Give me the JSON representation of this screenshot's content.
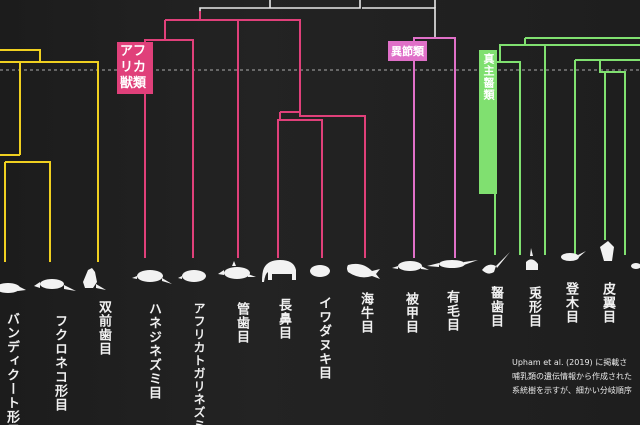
{
  "groups": [
    {
      "key": "afrotheria",
      "label": "アフリカ獣類",
      "color": "#e0407a"
    },
    {
      "key": "xenarthra",
      "label": "異節類",
      "color": "#e070c8"
    },
    {
      "key": "euarchontoglires",
      "label": "真主齧類",
      "color": "#80e070"
    }
  ],
  "orders": [
    {
      "label": "バンディクート形目"
    },
    {
      "label": "フクロネコ形目"
    },
    {
      "label": "双前歯目"
    },
    {
      "label": "ハネジネズミ目"
    },
    {
      "label": "アフリカトガリネズミ目"
    },
    {
      "label": "管歯目"
    },
    {
      "label": "長鼻目"
    },
    {
      "label": "イワダヌキ目"
    },
    {
      "label": "海牛目"
    },
    {
      "label": "被甲目"
    },
    {
      "label": "有毛目"
    },
    {
      "label": "齧歯目"
    },
    {
      "label": "兎形目"
    },
    {
      "label": "登木目"
    },
    {
      "label": "皮翼目"
    }
  ],
  "colors": {
    "marsupial": "#f0d020",
    "afrotheria": "#e0407a",
    "xenarthra": "#e070c8",
    "euarchontoglires": "#80e070",
    "root": "#e8e8e8",
    "silhouette": "#f2f2f2"
  },
  "note": {
    "line1": "Upham et al. (2019) に掲載さ",
    "line2": "哺乳類の遺伝情報から作成された",
    "line3": "系統樹を示すが、細かい分岐順序"
  }
}
